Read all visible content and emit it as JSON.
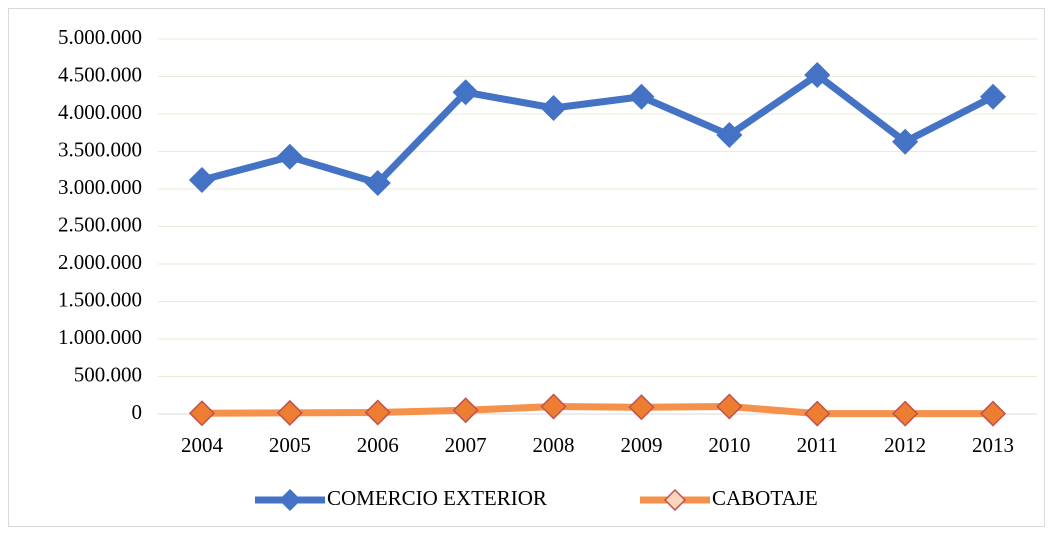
{
  "chart_data": {
    "type": "line",
    "categories": [
      "2004",
      "2005",
      "2006",
      "2007",
      "2008",
      "2009",
      "2010",
      "2011",
      "2012",
      "2013"
    ],
    "series": [
      {
        "name": "COMERCIO EXTERIOR",
        "color": "#4472c4",
        "marker_color": "#4472c4",
        "values": [
          3120000,
          3430000,
          3080000,
          4290000,
          4080000,
          4230000,
          3720000,
          4520000,
          3630000,
          4230000
        ]
      },
      {
        "name": "CABOTAJE",
        "color": "#f4914a",
        "marker_color": "#ed7d31",
        "values": [
          10000,
          15000,
          20000,
          50000,
          100000,
          90000,
          100000,
          5000,
          5000,
          5000
        ]
      }
    ],
    "ylim": [
      0,
      5000000
    ],
    "yticks": [
      0,
      {
        "value": 500000,
        "label": "500.000"
      },
      {
        "value": 1000000,
        "label": "1.000.000"
      },
      {
        "value": 1500000,
        "label": "1.500.000"
      },
      {
        "value": 2000000,
        "label": "2.000.000"
      },
      {
        "value": 2500000,
        "label": "2.500.000"
      },
      {
        "value": 3000000,
        "label": "3.000.000"
      },
      {
        "value": 3500000,
        "label": "3.500.000"
      },
      {
        "value": 4000000,
        "label": "4.000.000"
      },
      {
        "value": 4500000,
        "label": "4.500.000"
      },
      {
        "value": 5000000,
        "label": "5.000.000"
      }
    ],
    "grid": true,
    "legend": "bottom"
  }
}
